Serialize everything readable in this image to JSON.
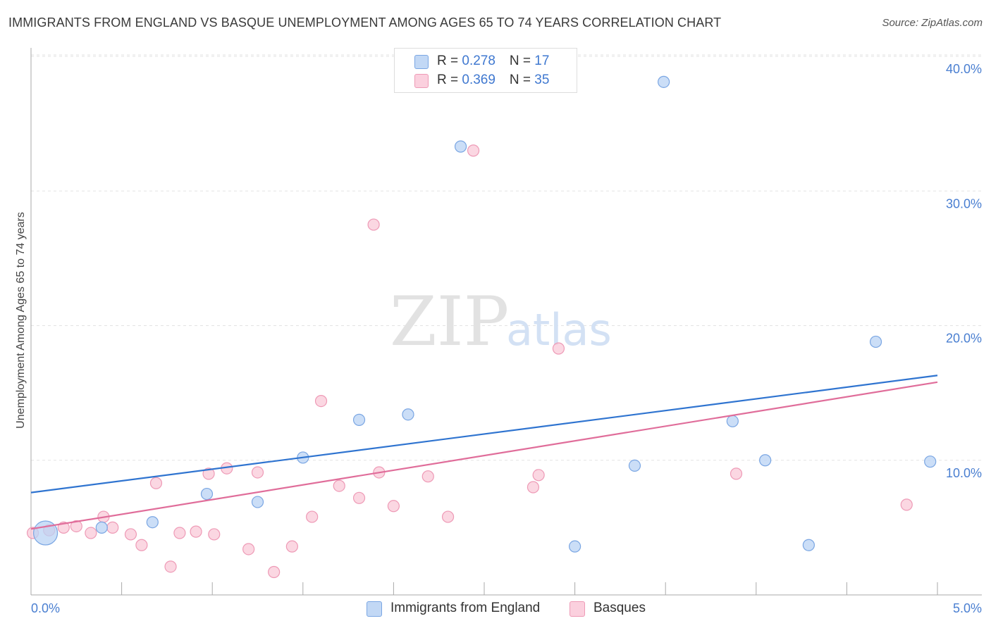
{
  "title": "IMMIGRANTS FROM ENGLAND VS BASQUE UNEMPLOYMENT AMONG AGES 65 TO 74 YEARS CORRELATION CHART",
  "source": "Source: ZipAtlas.com",
  "watermark": {
    "zip": "ZIP",
    "atlas": "atlas"
  },
  "legend": {
    "england": {
      "r_label": "R = ",
      "r_value": "0.278",
      "n_label": "N = ",
      "n_value": "17"
    },
    "basques": {
      "r_label": "R = ",
      "r_value": "0.369",
      "n_label": "N = ",
      "n_value": "35"
    }
  },
  "bottom_legend": {
    "england": "Immigrants from England",
    "basques": "Basques"
  },
  "colors": {
    "england_fill": "#b9d3f4",
    "england_stroke": "#7aa6e3",
    "england_line": "#2f74d0",
    "basques_fill": "#f9c9d8",
    "basques_stroke": "#ee9ab6",
    "basques_line": "#e06d9a",
    "grid": "#e3e3e3",
    "axis": "#aaaaaa",
    "tick_text": "#4a7fd1"
  },
  "chart_data": {
    "type": "scatter",
    "title": "IMMIGRANTS FROM ENGLAND VS BASQUE UNEMPLOYMENT AMONG AGES 65 TO 74 YEARS CORRELATION CHART",
    "xlabel": "",
    "ylabel": "Unemployment Among Ages 65 to 74 years",
    "xlim": [
      0,
      5
    ],
    "ylim": [
      0,
      40
    ],
    "x_tick_labels": [
      "0.0%",
      "5.0%"
    ],
    "y_ticks": [
      10,
      20,
      30,
      40
    ],
    "y_tick_labels": [
      "10.0%",
      "20.0%",
      "30.0%",
      "40.0%"
    ],
    "grid": true,
    "series": [
      {
        "name": "Immigrants from England",
        "r": 0.278,
        "n": 17,
        "trend": {
          "x": [
            0,
            5
          ],
          "y": [
            7.6,
            16.3
          ]
        },
        "points": [
          {
            "x": 0.08,
            "y": 4.6,
            "big": true
          },
          {
            "x": 0.39,
            "y": 5.0
          },
          {
            "x": 0.67,
            "y": 5.4
          },
          {
            "x": 0.97,
            "y": 7.5
          },
          {
            "x": 1.25,
            "y": 6.9
          },
          {
            "x": 1.5,
            "y": 10.2
          },
          {
            "x": 1.81,
            "y": 13.0
          },
          {
            "x": 2.08,
            "y": 13.4
          },
          {
            "x": 2.37,
            "y": 33.3
          },
          {
            "x": 3.0,
            "y": 3.6
          },
          {
            "x": 3.33,
            "y": 9.6
          },
          {
            "x": 3.49,
            "y": 38.1
          },
          {
            "x": 3.87,
            "y": 12.9
          },
          {
            "x": 4.05,
            "y": 10.0
          },
          {
            "x": 4.29,
            "y": 3.7
          },
          {
            "x": 4.66,
            "y": 18.8
          },
          {
            "x": 4.96,
            "y": 9.9
          }
        ]
      },
      {
        "name": "Basques",
        "r": 0.369,
        "n": 35,
        "trend": {
          "x": [
            0,
            5
          ],
          "y": [
            4.9,
            15.8
          ]
        },
        "points": [
          {
            "x": 0.01,
            "y": 4.6
          },
          {
            "x": 0.1,
            "y": 4.8
          },
          {
            "x": 0.18,
            "y": 5.0
          },
          {
            "x": 0.25,
            "y": 5.1
          },
          {
            "x": 0.33,
            "y": 4.6
          },
          {
            "x": 0.4,
            "y": 5.8
          },
          {
            "x": 0.45,
            "y": 5.0
          },
          {
            "x": 0.55,
            "y": 4.5
          },
          {
            "x": 0.61,
            "y": 3.7
          },
          {
            "x": 0.69,
            "y": 8.3
          },
          {
            "x": 0.77,
            "y": 2.1
          },
          {
            "x": 0.82,
            "y": 4.6
          },
          {
            "x": 0.91,
            "y": 4.7
          },
          {
            "x": 0.98,
            "y": 9.0
          },
          {
            "x": 1.01,
            "y": 4.5
          },
          {
            "x": 1.08,
            "y": 9.4
          },
          {
            "x": 1.2,
            "y": 3.4
          },
          {
            "x": 1.25,
            "y": 9.1
          },
          {
            "x": 1.34,
            "y": 1.7
          },
          {
            "x": 1.44,
            "y": 3.6
          },
          {
            "x": 1.55,
            "y": 5.8
          },
          {
            "x": 1.6,
            "y": 14.4
          },
          {
            "x": 1.7,
            "y": 8.1
          },
          {
            "x": 1.81,
            "y": 7.2
          },
          {
            "x": 1.89,
            "y": 27.5
          },
          {
            "x": 1.92,
            "y": 9.1
          },
          {
            "x": 2.0,
            "y": 6.6
          },
          {
            "x": 2.19,
            "y": 8.8
          },
          {
            "x": 2.3,
            "y": 5.8
          },
          {
            "x": 2.44,
            "y": 33.0
          },
          {
            "x": 2.77,
            "y": 8.0
          },
          {
            "x": 2.8,
            "y": 8.9
          },
          {
            "x": 2.91,
            "y": 18.3
          },
          {
            "x": 3.89,
            "y": 9.0
          },
          {
            "x": 4.83,
            "y": 6.7
          }
        ]
      }
    ]
  }
}
